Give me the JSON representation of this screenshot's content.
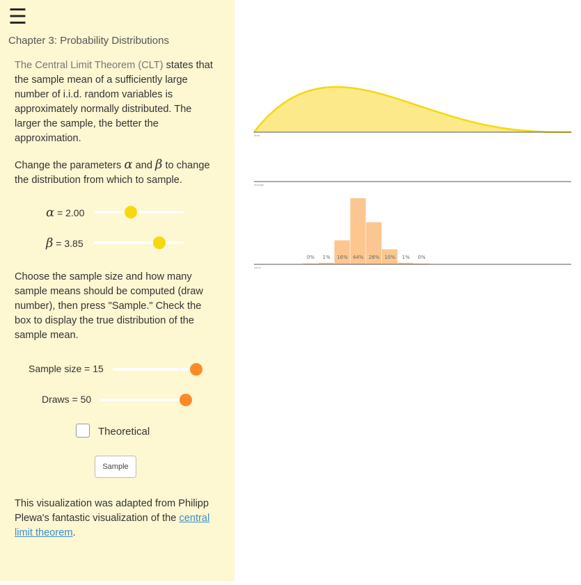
{
  "sidebar": {
    "menu_icon": "hamburger-icon",
    "chapter": "Chapter 3: Probability Distributions",
    "intro_gray": "The Central Limit Theorem (CLT)",
    "intro_rest": " states that the sample mean of a sufficiently large number of i.i.d. random variables is approximately normally distributed. The larger the sample, the better the approximation.",
    "params_pre": "Change the parameters ",
    "alpha_symbol": "α",
    "params_and": " and ",
    "beta_symbol": "β",
    "params_post": " to change the distribution from which to sample.",
    "alpha_label": "= 2.00",
    "beta_label": "= 3.85",
    "alpha_value": 2.0,
    "beta_value": 3.85,
    "alpha_slider_fraction": 0.4,
    "beta_slider_fraction": 0.73,
    "sample_instructions": "Choose the sample size and how many sample means should be computed (draw number), then press \"Sample.\" Check the box to display the true distribution of the sample mean.",
    "sample_size_label": "Sample size = 15",
    "draws_label": "Draws = 50",
    "sample_size_slider_fraction": 0.93,
    "draws_slider_fraction": 0.95,
    "theoretical_label": "Theoretical",
    "theoretical_checked": false,
    "sample_button": "Sample",
    "credit_pre": "This visualization was adapted from Philipp Plewa's fantastic visualization of the ",
    "credit_link": "central limit theorem",
    "credit_post": "."
  },
  "colors": {
    "sidebar_bg": "#fdf7d2",
    "yellow": "#f6d80c",
    "yellow_fill": "#fbe98a",
    "orange": "#fb8a27",
    "bar_fill": "#fbc68f",
    "link": "#3a8fc6"
  },
  "viz": {
    "draw_label": "draw",
    "average_label": "average",
    "count_label": "count",
    "chart_data": {
      "type": "bar",
      "categories": [
        "b1",
        "b2",
        "b3",
        "b4",
        "b5",
        "b6",
        "b7",
        "b8"
      ],
      "values": [
        0,
        1,
        16,
        44,
        28,
        10,
        1,
        0
      ],
      "data_labels": [
        "0%",
        "1%",
        "16%",
        "44%",
        "28%",
        "10%",
        "1%",
        "0%"
      ],
      "ylabel": "count",
      "ylim": [
        0,
        44
      ]
    }
  }
}
